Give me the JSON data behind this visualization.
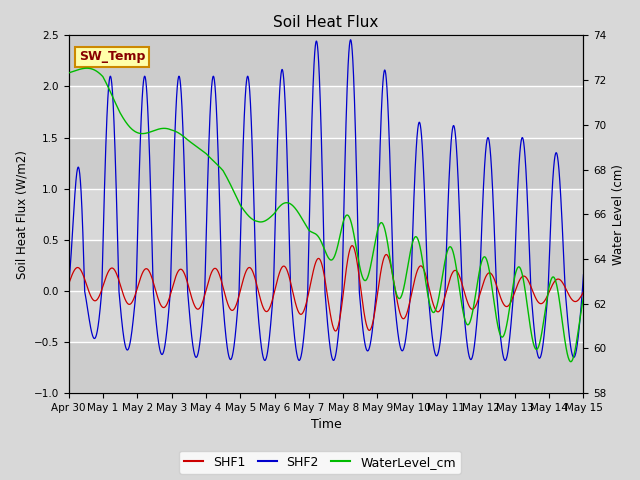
{
  "title": "Soil Heat Flux",
  "ylabel_left": "Soil Heat Flux (W/m2)",
  "ylabel_right": "Water Level (cm)",
  "xlabel": "Time",
  "ylim_left": [
    -1.0,
    2.5
  ],
  "ylim_right": [
    58,
    74
  ],
  "yticks_left": [
    -1.0,
    -0.5,
    0.0,
    0.5,
    1.0,
    1.5,
    2.0,
    2.5
  ],
  "yticks_right": [
    58,
    60,
    62,
    64,
    66,
    68,
    70,
    72,
    74
  ],
  "background_color": "#d8d8d8",
  "plot_bg_color": "#d8d8d8",
  "shf1_color": "#cc0000",
  "shf2_color": "#0000cc",
  "water_color": "#00bb00",
  "annotation_text": "SW_Temp",
  "annotation_color": "#880000",
  "annotation_bg": "#ffffaa",
  "annotation_border": "#cc8800"
}
